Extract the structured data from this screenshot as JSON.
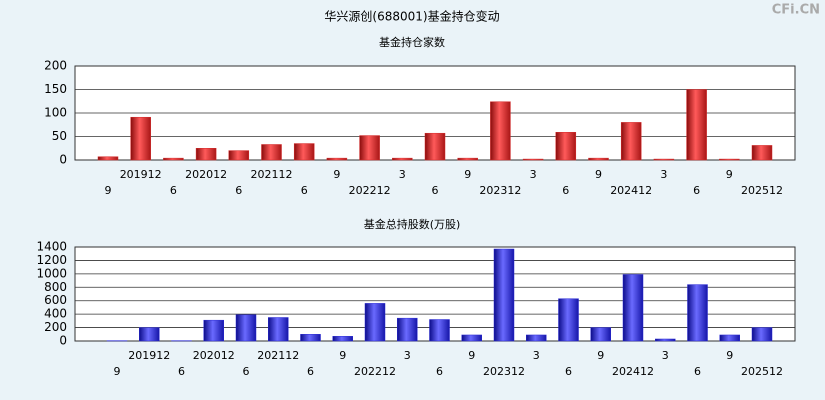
{
  "title": "华兴源创(688001)基金持仓变动",
  "watermark": "CFi.CN",
  "chart_data": [
    {
      "type": "bar",
      "title": "基金持仓家数",
      "color": "#d42a2a",
      "categories": [
        "9",
        "201912",
        "6",
        "202012",
        "6",
        "202112",
        "6",
        "9",
        "202212",
        "3",
        "6",
        "9",
        "202312",
        "3",
        "6",
        "9",
        "202412",
        "3",
        "6",
        "9",
        "202512"
      ],
      "values": [
        7,
        91,
        4,
        25,
        20,
        33,
        35,
        4,
        52,
        4,
        57,
        4,
        124,
        2,
        59,
        4,
        80,
        2,
        150,
        2,
        31
      ],
      "ylim": [
        0,
        200
      ],
      "yticks": [
        0,
        50,
        100,
        150,
        200
      ],
      "grid": true
    },
    {
      "type": "bar",
      "title": "基金总持股数(万股)",
      "color": "#2a2ad4",
      "categories": [
        "9",
        "201912",
        "6",
        "202012",
        "6",
        "202112",
        "6",
        "9",
        "202212",
        "3",
        "6",
        "9",
        "202312",
        "3",
        "6",
        "9",
        "202412",
        "3",
        "6",
        "9",
        "202512"
      ],
      "values": [
        5,
        200,
        5,
        310,
        390,
        350,
        100,
        70,
        560,
        340,
        320,
        90,
        1370,
        90,
        630,
        200,
        990,
        30,
        840,
        90,
        200
      ],
      "ylim": [
        0,
        1400
      ],
      "yticks": [
        0,
        200,
        400,
        600,
        800,
        1000,
        1200,
        1400
      ],
      "grid": true
    }
  ]
}
